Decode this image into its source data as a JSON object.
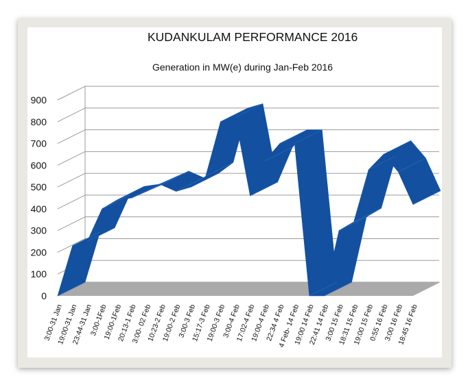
{
  "chart_data": {
    "type": "area",
    "title": "KUDANKULAM PERFORMANCE 2016",
    "subtitle": "Generation in MW(e) during Jan-Feb 2016",
    "xlabel": "",
    "ylabel": "",
    "ylim": [
      0,
      900
    ],
    "yticks": [
      0,
      100,
      200,
      300,
      400,
      500,
      600,
      700,
      800,
      900
    ],
    "grid": true,
    "rendering": "3d",
    "series_color": "#1350a0",
    "floor_color": "#aaaaaa",
    "categories": [
      "3:00-31 Jan",
      "19:00-31 Jan",
      "23:44-31 Jan",
      "3:00-1Feb",
      "19:00-1Feb",
      "20:13-1 Feb",
      "3:00- 02 Feb",
      "10:23-2 Feb",
      "19:00-2 Feb",
      "3:00-3 Feb",
      "15:17-3 Feb",
      "19:00-3 Feb",
      "3:00-4 Feb",
      "17:02-4 Feb",
      "19:00-4 Feb",
      "22:34 4 Feb",
      "4 Feb- 14 Feb",
      "19:00 14 Feb",
      "22:41 14 Feb",
      "3:00 15 Feb",
      "18:31 15 Feb",
      "19:00 15 Feb",
      "0:55 16 Feb",
      "3:00 16 Feb",
      "18:45 16 Feb"
    ],
    "series": [
      {
        "values": [
          0,
          230,
          250,
          400,
          440,
          450,
          480,
          510,
          480,
          500,
          550,
          800,
          820,
          460,
          620,
          700,
          700,
          0,
          0,
          300,
          340,
          580,
          650,
          570,
          420
        ]
      }
    ]
  }
}
